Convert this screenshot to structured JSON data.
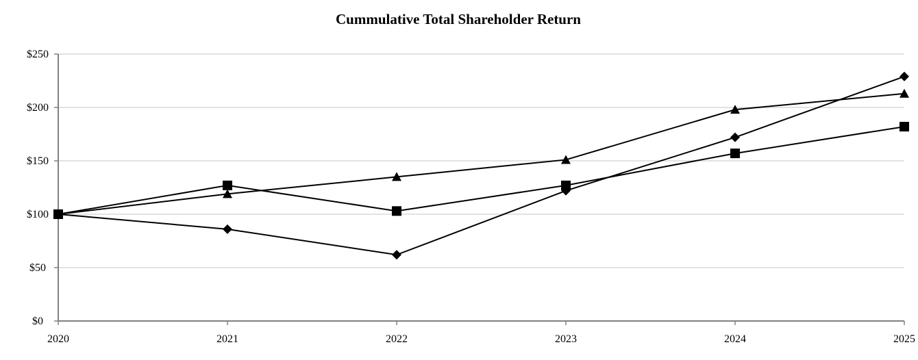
{
  "chart_data": {
    "type": "line",
    "title": "Cummulative Total Shareholder Return",
    "xlabel": "",
    "ylabel": "",
    "categories": [
      "2020",
      "2021",
      "2022",
      "2023",
      "2024",
      "2025"
    ],
    "ylim": [
      0,
      250
    ],
    "y_ticks": [
      0,
      50,
      100,
      150,
      200,
      250
    ],
    "y_tick_labels": [
      "$0",
      "$50",
      "$100",
      "$150",
      "$200",
      "$250"
    ],
    "grid": true,
    "legend": "none",
    "series": [
      {
        "marker": "diamond",
        "color": "#000000",
        "values": [
          100,
          86,
          62,
          122,
          172,
          229
        ]
      },
      {
        "marker": "square",
        "color": "#000000",
        "values": [
          100,
          127,
          103,
          127,
          157,
          182
        ]
      },
      {
        "marker": "triangle",
        "color": "#000000",
        "values": [
          100,
          119,
          135,
          151,
          198,
          213
        ]
      }
    ]
  }
}
